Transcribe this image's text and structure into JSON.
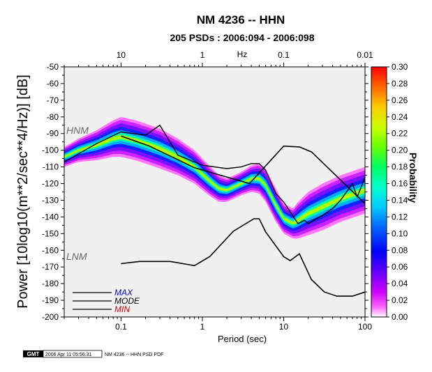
{
  "chart_data": {
    "type": "heatmap",
    "title": "NM 4236 -- HHN",
    "subtitle": "205 PSDs : 2006:094 - 2006:098",
    "xlabel": "Period (sec)",
    "ylabel": "Power [10log10(m**2/sec**4/Hz)] [dB]",
    "top_axis_label": "Hz",
    "x_scale": "log",
    "xlim": [
      0.02,
      100
    ],
    "ylim": [
      -200,
      -50
    ],
    "x_ticks": [
      {
        "value": 0.1,
        "label": "0.1"
      },
      {
        "value": 1,
        "label": "1"
      },
      {
        "value": 10,
        "label": "10"
      },
      {
        "value": 100,
        "label": "100"
      }
    ],
    "y_ticks": [
      -50,
      -60,
      -70,
      -80,
      -90,
      -100,
      -110,
      -120,
      -130,
      -140,
      -150,
      -160,
      -170,
      -180,
      -190,
      -200
    ],
    "top_ticks": [
      {
        "period": 0.1,
        "label": "10"
      },
      {
        "period": 1,
        "label": "1"
      },
      {
        "period": 10,
        "label": "0.1"
      },
      {
        "period": 100,
        "label": "0.01"
      }
    ],
    "colorbar": {
      "label": "Probability",
      "min": 0.0,
      "max": 0.3,
      "ticks": [
        "0.00",
        "0.02",
        "0.04",
        "0.06",
        "0.08",
        "0.10",
        "0.12",
        "0.14",
        "0.16",
        "0.18",
        "0.20",
        "0.22",
        "0.24",
        "0.26",
        "0.28",
        "0.30"
      ]
    },
    "reference_labels": {
      "high": "HNM",
      "low": "LNM"
    },
    "legend": [
      {
        "label": "MAX",
        "color": "#0000cc"
      },
      {
        "label": "MODE",
        "color": "#000000"
      },
      {
        "label": "MIN",
        "color": "#cc0000"
      }
    ],
    "density_band": {
      "period": [
        0.02,
        0.03,
        0.05,
        0.08,
        0.1,
        0.15,
        0.2,
        0.3,
        0.5,
        0.8,
        1.2,
        1.6,
        2,
        3,
        4,
        5,
        6,
        8,
        10,
        13,
        15,
        20,
        30,
        50,
        100
      ],
      "mode": [
        -104,
        -100,
        -97,
        -93,
        -92,
        -94,
        -96,
        -99,
        -104,
        -110,
        -118,
        -123,
        -124,
        -120,
        -117,
        -117,
        -121,
        -133,
        -141,
        -144,
        -142,
        -138,
        -134,
        -129,
        -124
      ],
      "width_db": [
        6,
        7,
        9,
        11,
        12,
        12,
        12,
        12,
        11,
        10,
        9,
        8,
        7,
        7,
        8,
        9,
        10,
        10,
        9,
        9,
        11,
        13,
        14,
        14,
        14
      ]
    },
    "hnm": {
      "period": [
        0.1,
        0.22,
        0.8,
        3.8,
        10,
        15.6,
        22,
        100
      ],
      "db": [
        -91.5,
        -97.4,
        -110.5,
        -120,
        -97.5,
        -98.0,
        -101,
        -132
      ]
    },
    "lnm": {
      "period": [
        0.1,
        0.17,
        0.4,
        0.8,
        1.24,
        2.4,
        4.3,
        5,
        6,
        10,
        12,
        15.6,
        21.9,
        31.6,
        45,
        70,
        101
      ],
      "db": [
        -168,
        -166.7,
        -166.7,
        -169.2,
        -163.7,
        -148.6,
        -141.1,
        -141.1,
        -149,
        -163.8,
        -166.2,
        -162.1,
        -177.5,
        -185,
        -187.5,
        -187.5,
        -185
      ]
    },
    "mode_max_line": {
      "period": [
        0.02,
        0.05,
        0.1,
        0.2,
        0.3,
        0.4,
        0.5,
        1,
        2,
        3,
        4,
        5,
        6,
        8,
        10,
        15,
        18,
        20,
        30,
        40,
        50,
        70,
        80,
        90,
        100
      ],
      "db": [
        -107,
        -96,
        -89,
        -91,
        -85,
        -95,
        -103,
        -109,
        -111,
        -110,
        -108,
        -108,
        -112,
        -126,
        -131,
        -144,
        -142,
        -144,
        -139,
        -135,
        -130,
        -120,
        -128,
        -122,
        -116
      ]
    }
  },
  "footer": {
    "logo": "GMT",
    "timestamp": "2006 Apr 11 05:56:31",
    "caption": "NM 4236 -- HHN PSD PDF"
  }
}
